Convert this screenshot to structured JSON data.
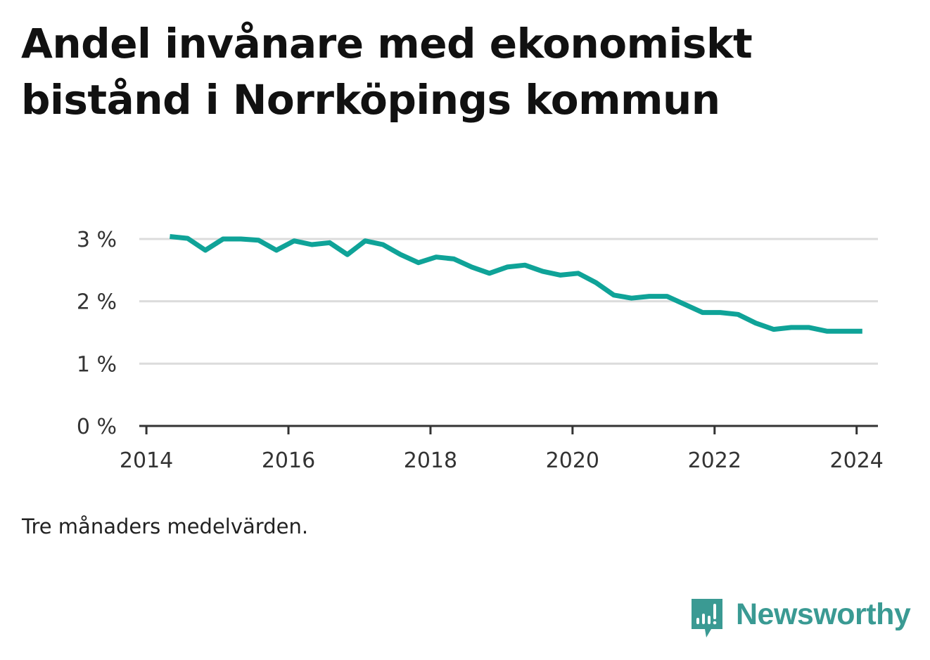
{
  "title": "Andel invånare med ekonomiskt bistånd i Norrköpings kommun",
  "note": "Tre månaders medelvärden.",
  "brand": {
    "name": "Newsworthy",
    "icon": "newsworthy-logo-icon",
    "color": "#3a9a93"
  },
  "chart_data": {
    "type": "line",
    "title": "Andel invånare med ekonomiskt bistånd i Norrköpings kommun",
    "xlabel": "",
    "ylabel": "",
    "xlim": [
      2013.9,
      2024.3
    ],
    "ylim": [
      0,
      3
    ],
    "grid": true,
    "legend": "none",
    "x_ticks": [
      {
        "value": 2014,
        "label": "2014"
      },
      {
        "value": 2016,
        "label": "2016"
      },
      {
        "value": 2018,
        "label": "2018"
      },
      {
        "value": 2020,
        "label": "2020"
      },
      {
        "value": 2022,
        "label": "2022"
      },
      {
        "value": 2024,
        "label": "2024"
      }
    ],
    "y_ticks": [
      {
        "value": 0,
        "label": "0 %"
      },
      {
        "value": 1,
        "label": "1 %"
      },
      {
        "value": 2,
        "label": "2 %"
      },
      {
        "value": 3,
        "label": "3 %"
      }
    ],
    "series": [
      {
        "color": "#0fa398",
        "x": [
          2014.33,
          2014.58,
          2014.83,
          2015.08,
          2015.33,
          2015.58,
          2015.83,
          2016.08,
          2016.33,
          2016.58,
          2016.83,
          2017.08,
          2017.33,
          2017.58,
          2017.83,
          2018.08,
          2018.33,
          2018.58,
          2018.83,
          2019.08,
          2019.33,
          2019.58,
          2019.83,
          2020.08,
          2020.33,
          2020.58,
          2020.83,
          2021.08,
          2021.33,
          2021.58,
          2021.83,
          2022.08,
          2022.33,
          2022.58,
          2022.83,
          2023.08,
          2023.33,
          2023.58,
          2023.83,
          2024.08
        ],
        "y": [
          3.04,
          3.01,
          2.82,
          3.0,
          3.0,
          2.98,
          2.82,
          2.97,
          2.91,
          2.94,
          2.75,
          2.97,
          2.91,
          2.75,
          2.62,
          2.71,
          2.68,
          2.55,
          2.45,
          2.55,
          2.58,
          2.48,
          2.42,
          2.45,
          2.3,
          2.1,
          2.05,
          2.08,
          2.08,
          1.95,
          1.82,
          1.82,
          1.79,
          1.65,
          1.55,
          1.58,
          1.58,
          1.52,
          1.52,
          1.52
        ]
      }
    ]
  }
}
